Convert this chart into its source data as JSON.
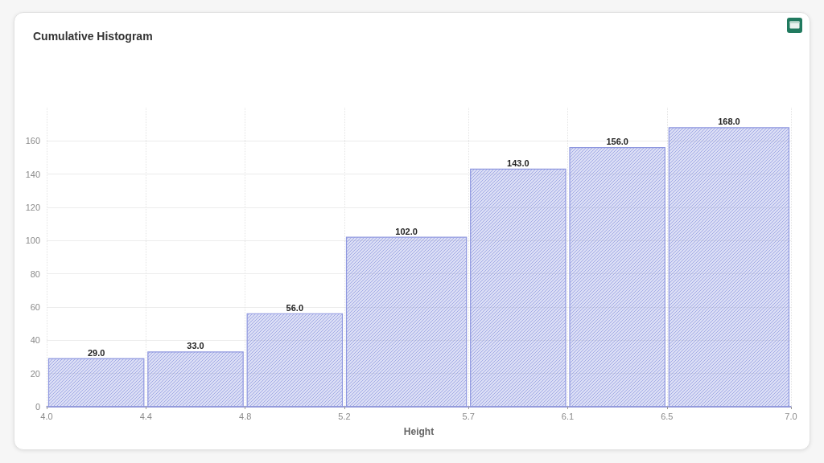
{
  "chart_data": {
    "type": "histogram",
    "title": "Cumulative Histogram",
    "xlabel": "Height",
    "bins": [
      4.0,
      4.4,
      4.8,
      5.2,
      5.7,
      6.1,
      6.5,
      7.0
    ],
    "values": [
      29,
      33,
      56,
      102,
      143,
      156,
      168
    ],
    "value_labels": [
      "29.0",
      "33.0",
      "56.0",
      "102.0",
      "143.0",
      "156.0",
      "168.0"
    ],
    "color": "#8f98df",
    "xlim": [
      4.0,
      7.0
    ],
    "xticks": [
      {
        "value": 4.0,
        "label": "4.0"
      },
      4.4,
      4.8,
      5.2,
      5.7,
      6.1,
      6.5,
      {
        "value": 7.0,
        "label": "7.0"
      }
    ],
    "ylim": [
      0,
      180
    ],
    "yticks": [
      0,
      20,
      40,
      60,
      80,
      100,
      120,
      140,
      160
    ],
    "grid": true
  }
}
